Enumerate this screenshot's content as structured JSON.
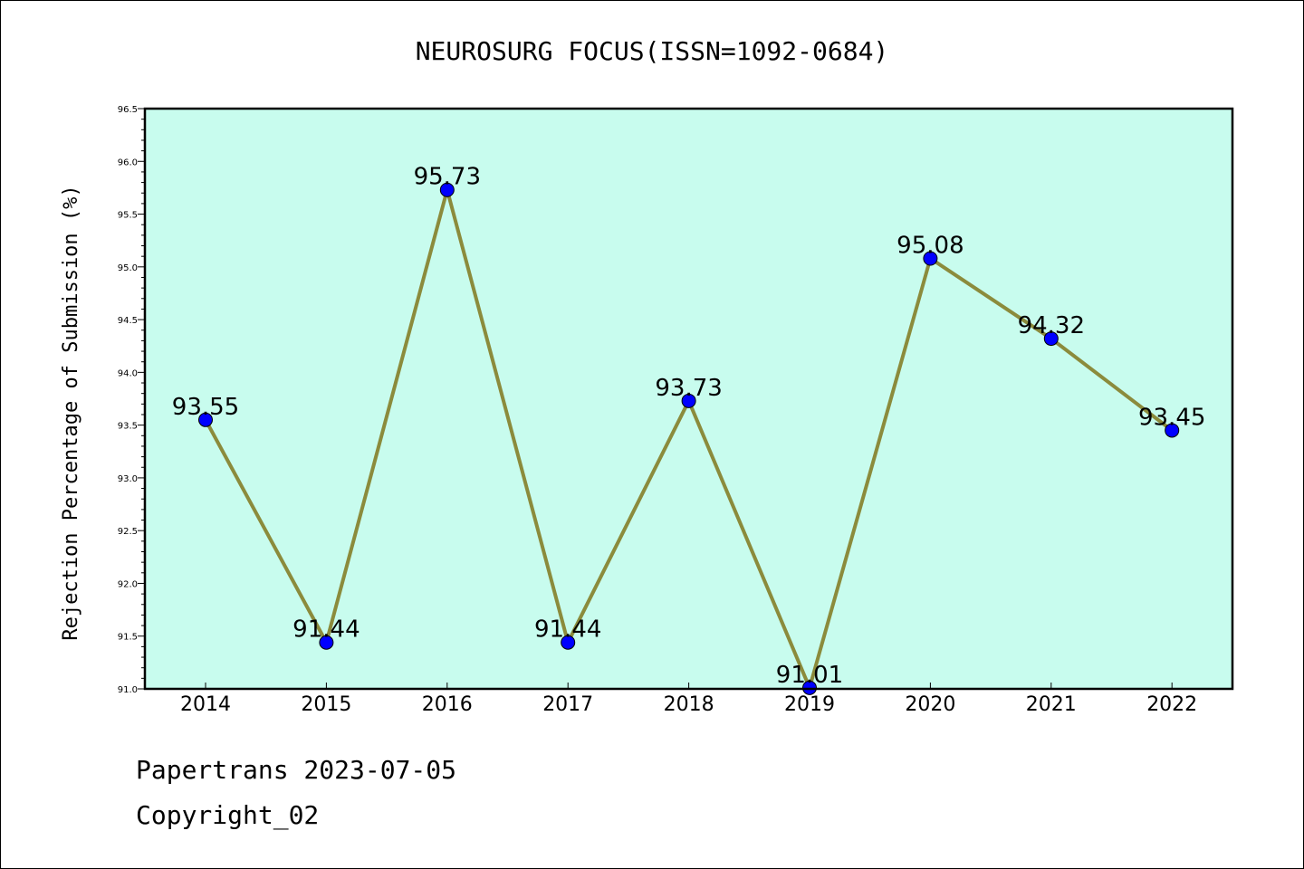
{
  "chart_data": {
    "type": "line",
    "title": "NEUROSURG FOCUS(ISSN=1092-0684)",
    "xlabel": "",
    "ylabel": "Rejection Percentage of Submission (%)",
    "categories": [
      "2014",
      "2015",
      "2016",
      "2017",
      "2018",
      "2019",
      "2020",
      "2021",
      "2022"
    ],
    "values": [
      93.55,
      91.44,
      95.73,
      91.44,
      93.73,
      91.01,
      95.08,
      94.32,
      93.45
    ],
    "data_labels": [
      "93.55",
      "91.44",
      "95.73",
      "91.44",
      "93.73",
      "91.01",
      "95.08",
      "94.32",
      "93.45"
    ],
    "ylim": [
      91.0,
      96.5
    ],
    "yticks": [
      "91.0",
      "91.5",
      "92.0",
      "92.5",
      "93.0",
      "93.5",
      "94.0",
      "94.5",
      "95.0",
      "95.5",
      "96.0",
      "96.5"
    ],
    "grid": false,
    "colors": {
      "plot_background": "#c8fcee",
      "line": "#8b8b3c",
      "marker": "#0000ff"
    }
  },
  "footer": {
    "line1": "Papertrans 2023-07-05",
    "line2": "Copyright_02"
  }
}
